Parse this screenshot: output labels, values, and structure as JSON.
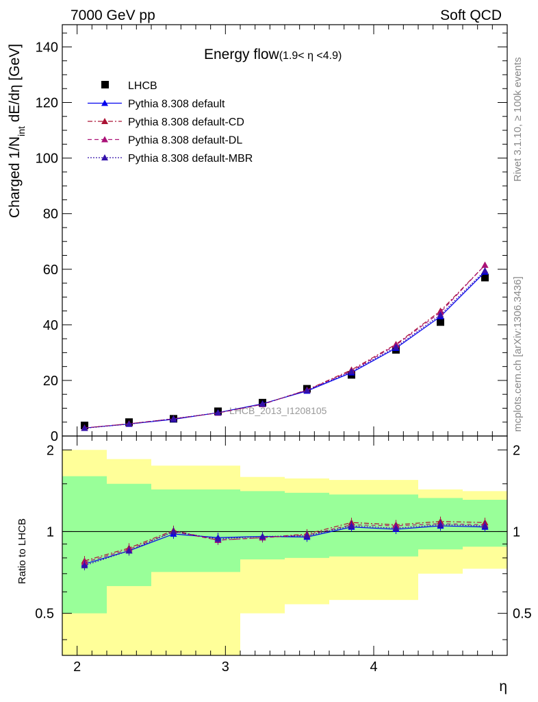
{
  "header": {
    "left": "7000 GeV pp",
    "right": "Soft QCD"
  },
  "side_labels": {
    "rivet": "Rivet 3.1.10, ≥ 100k events",
    "source": "mcplots.cern.ch [arXiv:1306.3436]"
  },
  "chart_data": [
    {
      "type": "scatter",
      "panel": "main",
      "title_main": "Energy flow",
      "title_sub": "(1.9< η <4.9)",
      "ylabel": "Charged 1/N",
      "ylabel_sub": "int",
      "ylabel_tail": " dE/dη [GeV]",
      "watermark": "LHCB_2013_I1208105",
      "xlim": [
        1.9,
        4.9
      ],
      "ylim": [
        0,
        148
      ],
      "yticks": [
        0,
        20,
        40,
        60,
        80,
        100,
        120,
        140
      ],
      "ytick_labels": [
        "0",
        "20",
        "40",
        "60",
        "80",
        "100",
        "120",
        "140"
      ],
      "x": [
        2.05,
        2.35,
        2.65,
        2.95,
        3.25,
        3.55,
        3.85,
        4.15,
        4.45,
        4.75
      ],
      "series": [
        {
          "name": "LHCB",
          "style": "data",
          "color": "#000000",
          "values": [
            3.8,
            5.0,
            6.2,
            8.9,
            12.0,
            17.0,
            22.0,
            31.0,
            41.0,
            57.0
          ]
        },
        {
          "name": "Pythia 8.308 default",
          "style": "solid",
          "color": "#0000ee",
          "values": [
            2.9,
            4.3,
            6.0,
            8.4,
            11.6,
            16.2,
            22.8,
            31.6,
            43.0,
            59.0
          ]
        },
        {
          "name": "Pythia 8.308 default-CD",
          "style": "dashdot",
          "color": "#aa1133",
          "values": [
            2.9,
            4.4,
            6.2,
            8.3,
            11.4,
            16.6,
            23.8,
            33.0,
            45.0,
            61.5
          ]
        },
        {
          "name": "Pythia 8.308 default-DL",
          "style": "dashed",
          "color": "#aa1177",
          "values": [
            2.9,
            4.4,
            6.2,
            8.3,
            11.4,
            16.5,
            23.4,
            32.7,
            44.5,
            61.5
          ]
        },
        {
          "name": "Pythia 8.308 default-MBR",
          "style": "dotted",
          "color": "#3311aa",
          "values": [
            2.8,
            4.3,
            6.2,
            8.4,
            11.5,
            16.4,
            23.2,
            32.0,
            43.6,
            59.5
          ]
        }
      ]
    },
    {
      "type": "scatter",
      "panel": "ratio",
      "ylabel": "Ratio to LHCB",
      "xlabel": "η",
      "xlim": [
        1.9,
        4.9
      ],
      "ylim": [
        0.35,
        2.25
      ],
      "xticks": [
        2,
        3,
        4
      ],
      "xtick_labels": [
        "2",
        "3",
        "4"
      ],
      "yticks": [
        0.5,
        1,
        2
      ],
      "ytick_labels": [
        "0.5",
        "1",
        "2"
      ],
      "bands": [
        {
          "x0": 1.9,
          "x1": 2.2,
          "green": [
            0.5,
            1.6
          ],
          "yellow": [
            0.35,
            2.0
          ]
        },
        {
          "x0": 2.2,
          "x1": 2.5,
          "green": [
            0.63,
            1.5
          ],
          "yellow": [
            0.35,
            1.85
          ]
        },
        {
          "x0": 2.5,
          "x1": 3.1,
          "green": [
            0.71,
            1.43
          ],
          "yellow": [
            0.35,
            1.75
          ]
        },
        {
          "x0": 3.1,
          "x1": 3.4,
          "green": [
            0.79,
            1.41
          ],
          "yellow": [
            0.5,
            1.59
          ]
        },
        {
          "x0": 3.4,
          "x1": 3.7,
          "green": [
            0.8,
            1.39
          ],
          "yellow": [
            0.54,
            1.57
          ]
        },
        {
          "x0": 3.7,
          "x1": 4.3,
          "green": [
            0.81,
            1.37
          ],
          "yellow": [
            0.56,
            1.55
          ]
        },
        {
          "x0": 4.3,
          "x1": 4.6,
          "green": [
            0.86,
            1.33
          ],
          "yellow": [
            0.7,
            1.43
          ]
        },
        {
          "x0": 4.6,
          "x1": 4.9,
          "green": [
            0.88,
            1.31
          ],
          "yellow": [
            0.73,
            1.41
          ]
        }
      ],
      "x": [
        2.05,
        2.35,
        2.65,
        2.95,
        3.25,
        3.55,
        3.85,
        4.15,
        4.45,
        4.75
      ],
      "series": [
        {
          "name": "Pythia 8.308 default",
          "style": "solid",
          "color": "#0000ee",
          "values": [
            0.76,
            0.85,
            0.98,
            0.95,
            0.96,
            0.955,
            1.04,
            1.02,
            1.05,
            1.04
          ]
        },
        {
          "name": "Pythia 8.308 default-CD",
          "style": "dashdot",
          "color": "#aa1133",
          "values": [
            0.78,
            0.87,
            1.01,
            0.93,
            0.95,
            0.98,
            1.08,
            1.06,
            1.09,
            1.08
          ]
        },
        {
          "name": "Pythia 8.308 default-DL",
          "style": "dashed",
          "color": "#aa1177",
          "values": [
            0.77,
            0.86,
            1.0,
            0.93,
            0.95,
            0.97,
            1.06,
            1.05,
            1.07,
            1.06
          ]
        },
        {
          "name": "Pythia 8.308 default-MBR",
          "style": "dotted",
          "color": "#3311aa",
          "values": [
            0.75,
            0.85,
            1.0,
            0.94,
            0.96,
            0.965,
            1.05,
            1.03,
            1.06,
            1.05
          ]
        }
      ]
    }
  ]
}
